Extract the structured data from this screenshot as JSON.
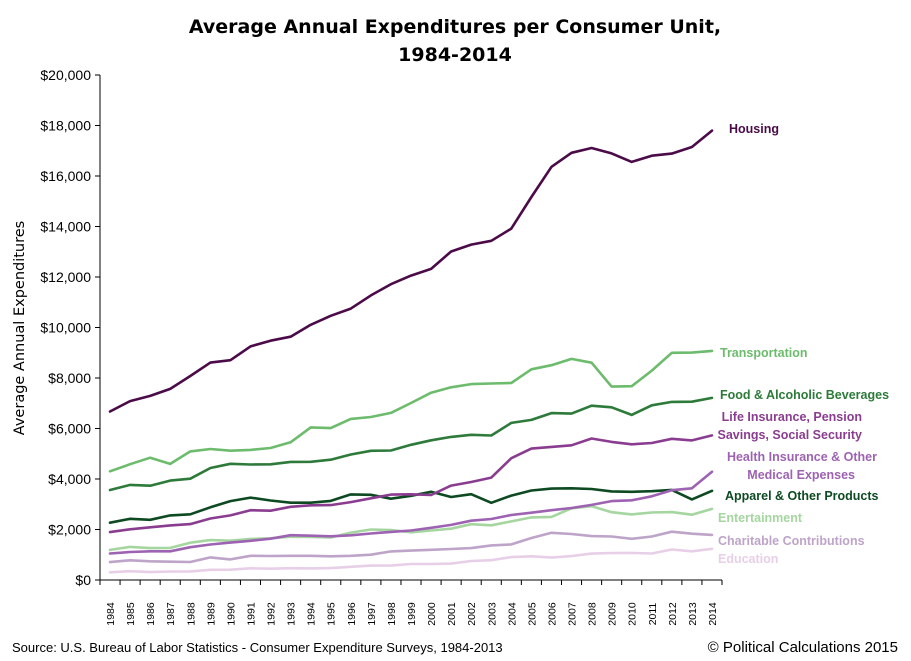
{
  "chart_data": {
    "type": "line",
    "title_line1": "Average Annual Expenditures per Consumer Unit,",
    "title_line2": "1984-2014",
    "ylabel": "Average Annual Expenditures",
    "xlabel": "",
    "ylim": [
      0,
      20000
    ],
    "yticks": [
      "$0",
      "$2,000",
      "$4,000",
      "$6,000",
      "$8,000",
      "$10,000",
      "$12,000",
      "$14,000",
      "$16,000",
      "$18,000",
      "$20,000"
    ],
    "x": [
      "1984",
      "1985",
      "1986",
      "1987",
      "1988",
      "1989",
      "1990",
      "1991",
      "1992",
      "1993",
      "1994",
      "1995",
      "1996",
      "1997",
      "1998",
      "1999",
      "2000",
      "2001",
      "2002",
      "2003",
      "2004",
      "2005",
      "2006",
      "2007",
      "2008",
      "2009",
      "2010",
      "2011",
      "2012",
      "2013",
      "2014"
    ],
    "grid": false,
    "legend": "none",
    "series": [
      {
        "name": "Housing",
        "label_lines": [
          "Housing"
        ],
        "color": "#4b0b48",
        "values": [
          6674,
          7087,
          7292,
          7569,
          8079,
          8609,
          8703,
          9252,
          9477,
          9636,
          10106,
          10465,
          10747,
          11272,
          11713,
          12057,
          12319,
          13011,
          13283,
          13432,
          13918,
          15167,
          16366,
          16920,
          17109,
          16895,
          16557,
          16803,
          16887,
          17148,
          17798
        ]
      },
      {
        "name": "Transportation",
        "label_lines": [
          "Transportation"
        ],
        "color": "#6dbb6d",
        "values": [
          4304,
          4587,
          4842,
          4600,
          5093,
          5187,
          5120,
          5151,
          5228,
          5453,
          6044,
          6016,
          6382,
          6457,
          6616,
          7011,
          7417,
          7633,
          7759,
          7781,
          7801,
          8344,
          8508,
          8758,
          8604,
          7658,
          7677,
          8293,
          8998,
          9004,
          9073
        ]
      },
      {
        "name": "Food & Alcoholic Beverages",
        "label_lines": [
          "Food & Alcoholic Beverages"
        ],
        "color": "#2d7a3a",
        "values": [
          3565,
          3767,
          3734,
          3935,
          4010,
          4436,
          4601,
          4576,
          4583,
          4676,
          4681,
          4766,
          4971,
          5118,
          5127,
          5353,
          5534,
          5667,
          5749,
          5722,
          6221,
          6339,
          6611,
          6590,
          6901,
          6839,
          6540,
          6920,
          7052,
          7062,
          7211
        ]
      },
      {
        "name": "Life Insurance, Pension Savings, Social Security",
        "label_lines": [
          "Life Insurance, Pension",
          "Savings, Social Security"
        ],
        "color": "#8a3d90",
        "values": [
          1897,
          2008,
          2089,
          2162,
          2215,
          2435,
          2558,
          2766,
          2743,
          2898,
          2957,
          2967,
          3086,
          3237,
          3381,
          3393,
          3365,
          3737,
          3883,
          4055,
          4823,
          5204,
          5270,
          5336,
          5605,
          5471,
          5373,
          5424,
          5591,
          5528,
          5726
        ]
      },
      {
        "name": "Health Insurance & Other Medical Expenses",
        "label_lines": [
          "Health Insurance & Other",
          "Medical Expenses"
        ],
        "color": "#9d63b2",
        "values": [
          1049,
          1108,
          1135,
          1135,
          1298,
          1407,
          1480,
          1554,
          1634,
          1776,
          1755,
          1732,
          1770,
          1841,
          1903,
          1959,
          2066,
          2182,
          2350,
          2416,
          2574,
          2664,
          2766,
          2853,
          2976,
          3126,
          3157,
          3313,
          3556,
          3631,
          4290
        ]
      },
      {
        "name": "Apparel & Other Products",
        "label_lines": [
          "Apparel & Other Products"
        ],
        "color": "#0d4a22",
        "values": [
          2270,
          2425,
          2384,
          2560,
          2601,
          2879,
          3123,
          3263,
          3148,
          3060,
          3063,
          3133,
          3391,
          3376,
          3219,
          3336,
          3493,
          3288,
          3399,
          3056,
          3343,
          3543,
          3619,
          3631,
          3602,
          3509,
          3494,
          3515,
          3567,
          3191,
          3531
        ]
      },
      {
        "name": "Entertainment",
        "label_lines": [
          "Entertainment"
        ],
        "color": "#a5d6a0",
        "values": [
          1194,
          1311,
          1265,
          1272,
          1477,
          1579,
          1558,
          1629,
          1653,
          1714,
          1701,
          1683,
          1877,
          1999,
          1978,
          1889,
          1962,
          2031,
          2211,
          2168,
          2322,
          2479,
          2498,
          2841,
          2922,
          2684,
          2599,
          2674,
          2689,
          2587,
          2817
        ]
      },
      {
        "name": "Charitable Contributions",
        "label_lines": [
          "Charitable Contributions"
        ],
        "color": "#bda4c8",
        "values": [
          707,
          780,
          739,
          726,
          714,
          897,
          817,
          960,
          950,
          960,
          960,
          940,
          960,
          1001,
          1134,
          1163,
          1197,
          1227,
          1265,
          1370,
          1408,
          1663,
          1869,
          1821,
          1737,
          1723,
          1633,
          1721,
          1913,
          1834,
          1788
        ]
      },
      {
        "name": "Education",
        "label_lines": [
          "Education"
        ],
        "color": "#e8cfe8",
        "values": [
          303,
          350,
          314,
          337,
          342,
          402,
          406,
          463,
          447,
          467,
          460,
          471,
          524,
          571,
          571,
          635,
          632,
          648,
          752,
          783,
          905,
          940,
          888,
          945,
          1046,
          1068,
          1074,
          1051,
          1207,
          1138,
          1236
        ]
      }
    ],
    "source": "Source: U.S. Bureau of Labor Statistics - Consumer Expenditure Surveys, 1984-2013",
    "credit": "© Political Calculations 2015"
  }
}
